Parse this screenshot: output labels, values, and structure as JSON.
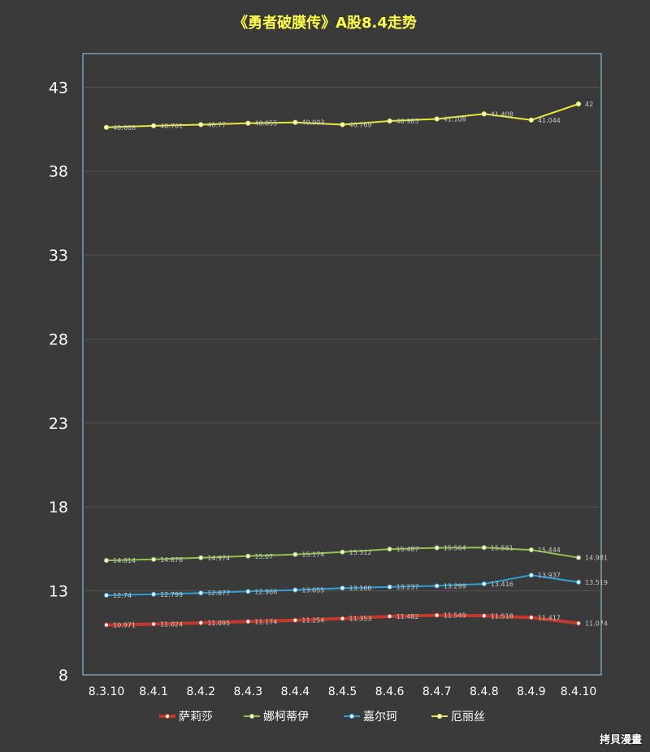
{
  "chart_data": {
    "type": "line",
    "title": "《勇者破膜传》A股8.4走势",
    "xlabel": "",
    "ylabel": "",
    "ylim": [
      8,
      45
    ],
    "yticks": [
      8,
      13,
      18,
      23,
      28,
      33,
      38,
      43
    ],
    "grid": true,
    "legend_position": "bottom",
    "categories": [
      "8.3.10",
      "8.4.1",
      "8.4.2",
      "8.4.3",
      "8.4.4",
      "8.4.5",
      "8.4.6",
      "8.4.7",
      "8.4.8",
      "8.4.9",
      "8.4.10"
    ],
    "series": [
      {
        "name": "萨莉莎",
        "color": "#c0392b",
        "values": [
          10.971,
          11.024,
          11.095,
          11.174,
          11.254,
          11.353,
          11.482,
          11.549,
          11.518,
          11.417,
          11.074
        ]
      },
      {
        "name": "娜柯蒂伊",
        "color": "#8fc34a",
        "values": [
          14.814,
          14.876,
          14.974,
          15.07,
          15.174,
          15.312,
          15.487,
          15.564,
          15.581,
          15.444,
          14.981
        ]
      },
      {
        "name": "嘉尔珂",
        "color": "#2e9fd8",
        "values": [
          12.74,
          12.799,
          12.877,
          12.966,
          13.055,
          13.166,
          13.237,
          13.299,
          13.416,
          13.937,
          13.519
        ]
      },
      {
        "name": "厄丽丝",
        "color": "#e8e83a",
        "values": [
          40.608,
          40.701,
          40.77,
          40.855,
          40.903,
          40.769,
          40.985,
          41.108,
          41.408,
          41.044,
          42
        ]
      }
    ]
  },
  "watermark": "拷貝漫畫"
}
